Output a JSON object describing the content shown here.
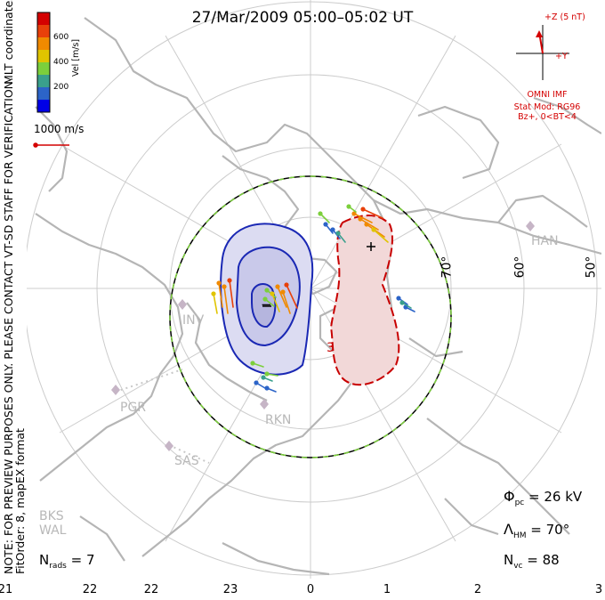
{
  "title": "27/Mar/2009 05:00–05:02 UT",
  "side_notes": {
    "mlt": "MLT coordinates",
    "note": "NOTE: FOR PREVIEW PURPOSES ONLY. PLEASE CONTACT VT-SD STAFF FOR VERIFICATION.",
    "fitorder": "FitOrder: 8, mapEX format"
  },
  "colorbar": {
    "label": "Vel [m/s]",
    "ticks": [
      "600",
      "400",
      "200"
    ],
    "colors": [
      "#0000e6",
      "#2c64c8",
      "#3aa08c",
      "#7ccf3c",
      "#e0c400",
      "#f08a00",
      "#e8400a",
      "#d40000"
    ]
  },
  "scale_vector": "1000 m/s",
  "imf": {
    "z_label": "+Z (5 nT)",
    "y_label": "+Y",
    "source": "OMNI IMF",
    "model1": "Stat Mod: RG96",
    "model2": "Bz+, 0<BT<4",
    "color": "#d40000"
  },
  "stats": {
    "phi_pc": "= 26 kV",
    "lambda_hm": "= 70°",
    "n_vc": "= 88",
    "n_rads": "= 7"
  },
  "mlt_ticks": [
    "21",
    "22",
    "23",
    "0",
    "1",
    "2",
    "3"
  ],
  "lat_labels": [
    "70°",
    "60°",
    "50°"
  ],
  "stations": [
    "HAN",
    "INV",
    "PGR",
    "SAS",
    "RKN",
    "BKS",
    "WAL"
  ],
  "potential_labels": [
    "−",
    "+",
    "3"
  ]
}
